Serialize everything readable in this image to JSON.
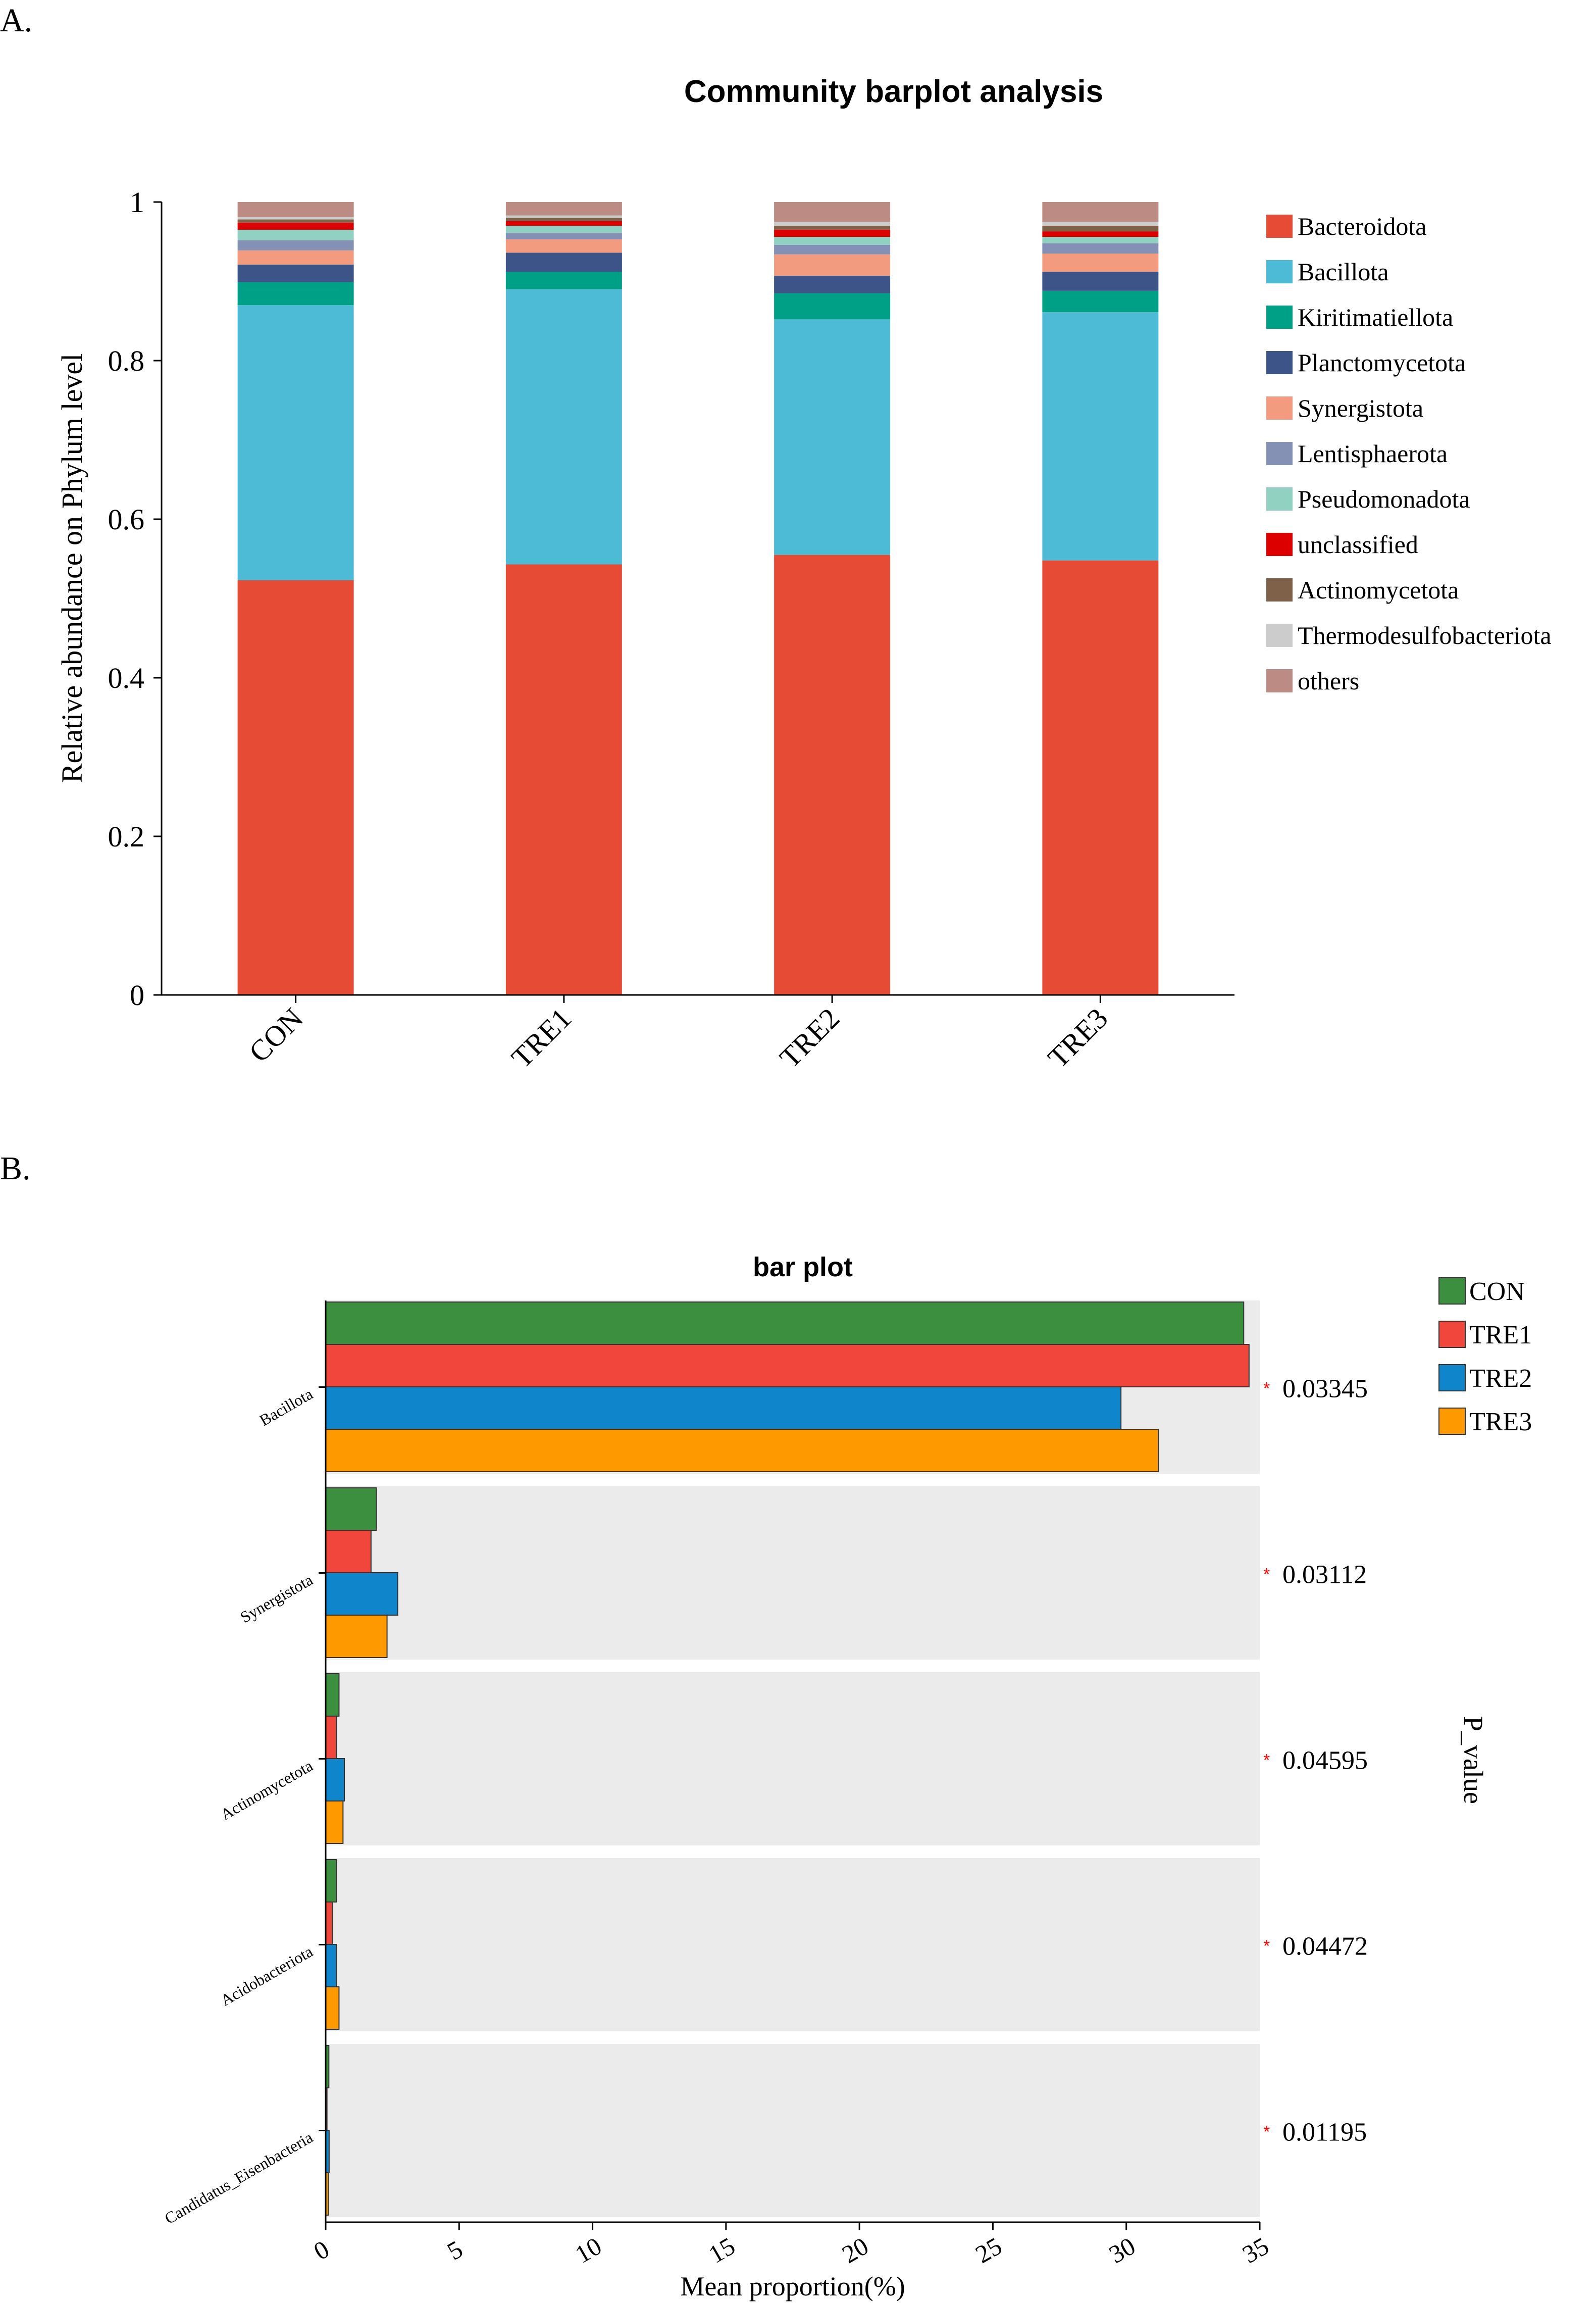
{
  "panel_a_label": "A.",
  "panel_b_label": "B.",
  "colors": {
    "axis": "#000000",
    "panel_bg": "#ebebeb",
    "sig_star": "#ff0000"
  },
  "chart_data": [
    {
      "id": "community_barplot",
      "type": "bar",
      "stacked": true,
      "title": "Community barplot analysis",
      "xlabel": "",
      "ylabel": "Relative abundance on Phylum level",
      "ylim": [
        0,
        1
      ],
      "yticks": [
        0,
        0.2,
        0.4,
        0.6,
        0.8,
        1
      ],
      "ytick_labels": [
        "0",
        "0.2",
        "0.4",
        "0.6",
        "0.8",
        "1"
      ],
      "categories": [
        "CON",
        "TRE1",
        "TRE2",
        "TRE3"
      ],
      "legend_position": "right",
      "series": [
        {
          "name": "Bacteroidota",
          "color": "#e64b35",
          "values": [
            0.523,
            0.543,
            0.555,
            0.548
          ]
        },
        {
          "name": "Bacillota",
          "color": "#4dbbd5",
          "values": [
            0.347,
            0.347,
            0.297,
            0.313
          ]
        },
        {
          "name": "Kiritimatiellota",
          "color": "#00a087",
          "values": [
            0.029,
            0.022,
            0.033,
            0.027
          ]
        },
        {
          "name": "Planctomycetota",
          "color": "#3c5488",
          "values": [
            0.022,
            0.024,
            0.022,
            0.024
          ]
        },
        {
          "name": "Synergistota",
          "color": "#f39b7f",
          "values": [
            0.018,
            0.017,
            0.027,
            0.023
          ]
        },
        {
          "name": "Lentisphaerota",
          "color": "#8491b4",
          "values": [
            0.013,
            0.008,
            0.012,
            0.013
          ]
        },
        {
          "name": "Pseudomonadota",
          "color": "#91d1c2",
          "values": [
            0.013,
            0.009,
            0.01,
            0.008
          ]
        },
        {
          "name": "unclassified",
          "color": "#dc0000",
          "values": [
            0.009,
            0.006,
            0.009,
            0.007
          ]
        },
        {
          "name": "Actinomycetota",
          "color": "#7e6148",
          "values": [
            0.004,
            0.004,
            0.005,
            0.007
          ]
        },
        {
          "name": "Thermodesulfobacteriota",
          "color": "#cccccc",
          "values": [
            0.003,
            0.003,
            0.005,
            0.005
          ]
        },
        {
          "name": "others",
          "color": "#bc8b83",
          "values": [
            0.019,
            0.017,
            0.025,
            0.025
          ]
        }
      ]
    },
    {
      "id": "bar_plot",
      "type": "bar",
      "orientation": "horizontal",
      "title": "bar plot",
      "xlabel": "Mean proportion(%)",
      "ylabel": "",
      "xlim": [
        0,
        35
      ],
      "xticks": [
        0,
        5,
        10,
        15,
        20,
        25,
        30,
        35
      ],
      "xtick_labels": [
        "0",
        "5",
        "10",
        "15",
        "20",
        "25",
        "30",
        "35"
      ],
      "categories": [
        "Bacillota",
        "Synergistota",
        "Actinomycetota",
        "Acidobacteriota",
        "Candidatus_Eisenbacteria"
      ],
      "p_value_title": "P_value",
      "p_values": [
        "0.03345",
        "0.03112",
        "0.04595",
        "0.04472",
        "0.01195"
      ],
      "significance_marks": [
        "*",
        "*",
        "*",
        "*",
        "*"
      ],
      "legend_position": "top-right",
      "series": [
        {
          "name": "CON",
          "color": "#3b8f3e",
          "values": [
            34.4,
            1.9,
            0.5,
            0.4,
            0.12
          ]
        },
        {
          "name": "TRE1",
          "color": "#f0463c",
          "values": [
            34.6,
            1.7,
            0.4,
            0.25,
            0.05
          ]
        },
        {
          "name": "TRE2",
          "color": "#0f86cc",
          "values": [
            29.8,
            2.7,
            0.7,
            0.4,
            0.13
          ]
        },
        {
          "name": "TRE3",
          "color": "#ff9900",
          "values": [
            31.2,
            2.3,
            0.65,
            0.5,
            0.1
          ]
        }
      ]
    }
  ]
}
